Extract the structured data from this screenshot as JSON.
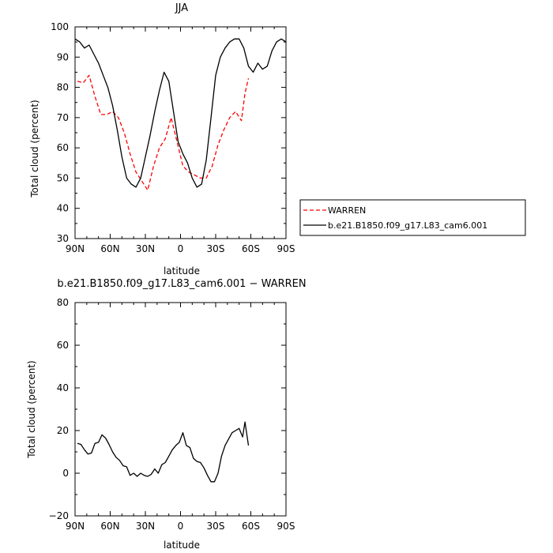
{
  "chart_data": [
    {
      "type": "line",
      "title": "JJA",
      "xlabel": "latitude",
      "ylabel": "Total cloud (percent)",
      "xlim": [
        -90,
        90
      ],
      "ylim": [
        30,
        100
      ],
      "x_ticks": [
        -90,
        -60,
        -30,
        0,
        30,
        60,
        90
      ],
      "x_tick_labels": [
        "90N",
        "60N",
        "30N",
        "0",
        "30S",
        "60S",
        "90S"
      ],
      "y_ticks": [
        30,
        40,
        50,
        60,
        70,
        80,
        90,
        100
      ],
      "y_tick_labels": [
        "30",
        "40",
        "50",
        "60",
        "70",
        "80",
        "90",
        "100"
      ],
      "legend_placement": "right",
      "series": [
        {
          "name": "WARREN",
          "color": "#ff0000",
          "dash": "dashed",
          "x": [
            -88,
            -83,
            -78,
            -73,
            -68,
            -63,
            -58,
            -53,
            -48,
            -43,
            -38,
            -33,
            -28,
            -23,
            -18,
            -13,
            -8,
            -3,
            2,
            7,
            12,
            17,
            22,
            27,
            32,
            37,
            42,
            47,
            52,
            55,
            58
          ],
          "y": [
            82,
            81.5,
            84,
            77,
            71,
            71,
            72,
            70,
            65,
            58,
            52,
            49,
            46,
            54,
            60,
            63,
            70,
            62,
            54,
            52,
            51,
            50,
            50,
            54,
            61,
            66,
            70,
            72,
            69,
            78,
            83
          ]
        },
        {
          "name": "b.e21.B1850.f09_g17.L83_cam6.001",
          "color": "#000000",
          "dash": "solid",
          "x": [
            -90,
            -86,
            -82,
            -78,
            -74,
            -70,
            -66,
            -62,
            -58,
            -54,
            -50,
            -46,
            -42,
            -38,
            -34,
            -30,
            -26,
            -22,
            -18,
            -14,
            -10,
            -6,
            -2,
            2,
            6,
            10,
            14,
            18,
            22,
            26,
            30,
            34,
            38,
            42,
            46,
            50,
            54,
            58,
            62,
            66,
            70,
            74,
            78,
            82,
            86,
            90
          ],
          "y": [
            96,
            95,
            93,
            94,
            91,
            88,
            84,
            80,
            74,
            66,
            57,
            50,
            48,
            47,
            50,
            57,
            64,
            72,
            79,
            85,
            82,
            72,
            62,
            58,
            55,
            50,
            47,
            48,
            56,
            70,
            84,
            90,
            93,
            95,
            96,
            96,
            93,
            87,
            85,
            88,
            86,
            87,
            92,
            95,
            96,
            95
          ]
        }
      ]
    },
    {
      "type": "line",
      "title": "b.e21.B1850.f09_g17.L83_cam6.001 − WARREN",
      "xlabel": "latitude",
      "ylabel": "Total cloud (percent)",
      "xlim": [
        -90,
        90
      ],
      "ylim": [
        -20,
        80
      ],
      "x_ticks": [
        -90,
        -60,
        -30,
        0,
        30,
        60,
        90
      ],
      "x_tick_labels": [
        "90N",
        "60N",
        "30N",
        "0",
        "30S",
        "60S",
        "90S"
      ],
      "y_ticks": [
        -20,
        0,
        20,
        40,
        60,
        80
      ],
      "y_tick_labels": [
        "−20",
        "0",
        "20",
        "40",
        "60",
        "80"
      ],
      "series": [
        {
          "color": "#000000",
          "dash": "solid",
          "x": [
            -88,
            -85,
            -82,
            -79,
            -76,
            -73,
            -70,
            -67,
            -64,
            -61,
            -58,
            -55,
            -52,
            -49,
            -46,
            -43,
            -40,
            -37,
            -34,
            -31,
            -28,
            -25,
            -22,
            -19,
            -16,
            -13,
            -10,
            -7,
            -4,
            -1,
            2,
            5,
            8,
            11,
            14,
            17,
            20,
            23,
            26,
            29,
            32,
            35,
            38,
            41,
            44,
            47,
            50,
            53,
            55,
            58
          ],
          "y": [
            14,
            13.5,
            11,
            9,
            9.5,
            14,
            14.5,
            18,
            16.5,
            13.5,
            10,
            7.5,
            6,
            3.5,
            3,
            -1,
            0,
            -1.5,
            0,
            -1,
            -1.5,
            -0.5,
            2,
            0,
            4,
            5,
            8,
            11,
            13,
            14.5,
            19,
            13,
            12,
            7,
            5.5,
            5,
            2.5,
            -1,
            -4,
            -4,
            0,
            8,
            13,
            16,
            19,
            20,
            21,
            17,
            24,
            13
          ]
        }
      ]
    }
  ]
}
